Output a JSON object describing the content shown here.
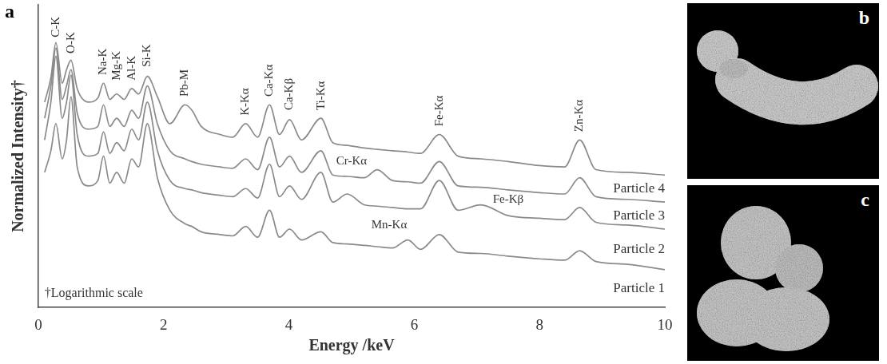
{
  "chart_data": {
    "type": "line",
    "panel_label": "a",
    "x_label": "Energy /keV",
    "y_label": "Normalized Intensity†",
    "xlim": [
      0,
      10
    ],
    "xticks": [
      0,
      2,
      4,
      6,
      8,
      10
    ],
    "ylim": [
      0,
      112
    ],
    "tick_labels": "x",
    "grid": false,
    "x": [
      0.1,
      0.2,
      0.28,
      0.38,
      0.45,
      0.52,
      0.62,
      0.8,
      0.95,
      1.04,
      1.14,
      1.25,
      1.37,
      1.49,
      1.6,
      1.74,
      1.9,
      2.1,
      2.34,
      2.45,
      2.6,
      2.9,
      3.1,
      3.31,
      3.5,
      3.69,
      3.85,
      4.01,
      4.2,
      4.51,
      4.7,
      4.93,
      5.2,
      5.41,
      5.65,
      5.9,
      6.1,
      6.4,
      6.7,
      7.06,
      7.5,
      8,
      8.4,
      8.64,
      8.9,
      9.4,
      10
    ],
    "series": [
      {
        "name": "Particle 4",
        "color": "#8a8a8a",
        "values": [
          76,
          85,
          98,
          83,
          88,
          91.5,
          81,
          76,
          77.5,
          83,
          77,
          79,
          77,
          81,
          79,
          85.5,
          78,
          68,
          75,
          73,
          67,
          64,
          63,
          68,
          63,
          75,
          64,
          69.5,
          62,
          70,
          61,
          60,
          59,
          58.5,
          58,
          57.5,
          57,
          64,
          56,
          55,
          54,
          52.5,
          52,
          62,
          51,
          50,
          49
        ]
      },
      {
        "name": "Particle 3",
        "color": "#8a8a8a",
        "values": [
          70,
          82,
          96,
          77,
          82,
          88,
          72,
          66,
          67,
          75,
          67,
          70,
          67,
          73,
          70,
          82,
          68,
          58,
          55,
          54,
          53,
          52,
          51.5,
          55,
          51,
          63,
          52,
          56,
          50,
          58,
          49,
          48.5,
          48,
          51,
          47,
          46.5,
          46,
          54,
          45,
          44.5,
          43.5,
          42.5,
          42,
          48,
          41,
          40,
          39
        ]
      },
      {
        "name": "Particle 2",
        "color": "#8a8a8a",
        "values": [
          62,
          76,
          93,
          70,
          76,
          86,
          64,
          56,
          57,
          65,
          57,
          61,
          58,
          66,
          62,
          76,
          58,
          47,
          44,
          43.5,
          42.5,
          41.5,
          41,
          44,
          40.5,
          53,
          41,
          45,
          40,
          50,
          39,
          42,
          38,
          37.5,
          37,
          36.5,
          36.5,
          47,
          36,
          38,
          34,
          33,
          32.5,
          37,
          31.5,
          30.5,
          29
        ]
      },
      {
        "name": "Particle 1",
        "color": "#8a8a8a",
        "values": [
          50,
          58,
          68,
          55,
          62,
          78,
          52,
          45,
          47,
          56,
          46,
          50,
          46,
          55,
          52,
          68,
          48,
          36,
          31,
          30,
          28,
          27,
          26.5,
          30,
          26,
          36,
          26,
          29,
          25,
          28,
          24,
          23.5,
          23,
          22.5,
          22,
          25,
          21.5,
          27,
          20.5,
          20,
          19,
          18,
          17.5,
          21,
          17,
          16,
          14
        ]
      }
    ],
    "peak_labels": [
      {
        "text": "C-K",
        "x": 0.28,
        "y": 100
      },
      {
        "text": "O-K",
        "x": 0.52,
        "y": 94
      },
      {
        "text": "Na-K",
        "x": 1.04,
        "y": 86
      },
      {
        "text": "Mg-K",
        "x": 1.25,
        "y": 84
      },
      {
        "text": "Al-K",
        "x": 1.49,
        "y": 84
      },
      {
        "text": "Si-K",
        "x": 1.74,
        "y": 89
      },
      {
        "text": "Pb-M",
        "x": 2.34,
        "y": 78
      },
      {
        "text": "K-Kα",
        "x": 3.31,
        "y": 71
      },
      {
        "text": "Ca-Kα",
        "x": 3.69,
        "y": 78
      },
      {
        "text": "Ca-Kβ",
        "x": 4.01,
        "y": 73
      },
      {
        "text": "Ti-Kα",
        "x": 4.51,
        "y": 73
      },
      {
        "text": "Fe-Kα",
        "x": 6.4,
        "y": 67
      },
      {
        "text": "Zn-Kα",
        "x": 8.64,
        "y": 65
      }
    ],
    "annotations": [
      {
        "text": "Cr-Kα",
        "x": 5.0,
        "y": 54
      },
      {
        "text": "Fe-Kβ",
        "x": 7.5,
        "y": 40
      },
      {
        "text": "Mn-Kα",
        "x": 5.6,
        "y": 30.5
      }
    ],
    "footnote": {
      "text": "†Logarithmic scale",
      "x": 0.1,
      "y": 5
    }
  },
  "images": [
    {
      "label": "b"
    },
    {
      "label": "c"
    }
  ]
}
